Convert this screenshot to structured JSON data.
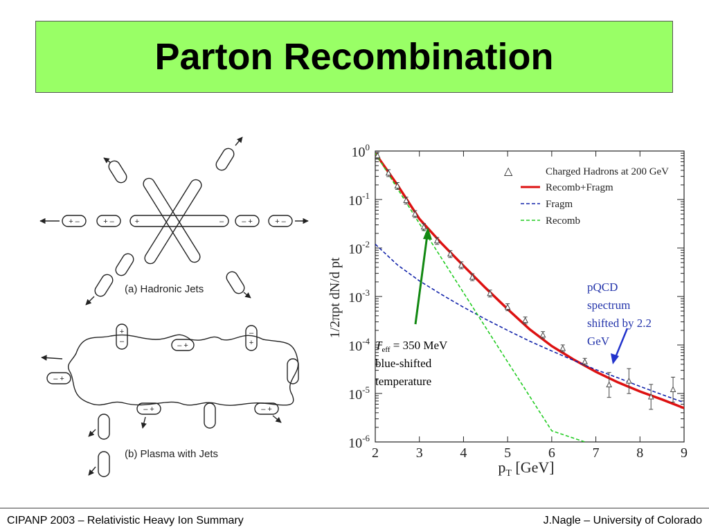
{
  "title": "Parton Recombination",
  "footer": {
    "left": "CIPANP 2003 – Relativistic Heavy Ion Summary",
    "right": "J.Nagle – University of Colorado"
  },
  "diagram": {
    "label_a": "(a)  Hadronic Jets",
    "label_b": "(b)  Plasma  with  Jets"
  },
  "chart_data": {
    "type": "line",
    "xlabel": "p_T [GeV]",
    "ylabel": "1/2πpt dN/d pt",
    "xlim": [
      2,
      9
    ],
    "ylim": [
      1e-06,
      1
    ],
    "yscale": "log",
    "xticks": [
      "2",
      "3",
      "4",
      "5",
      "6",
      "7",
      "8",
      "9"
    ],
    "yticks": [
      {
        "base": "10",
        "exp": "0"
      },
      {
        "base": "10",
        "exp": "-1"
      },
      {
        "base": "10",
        "exp": "-2"
      },
      {
        "base": "10",
        "exp": "-3"
      },
      {
        "base": "10",
        "exp": "-4"
      },
      {
        "base": "10",
        "exp": "-5"
      },
      {
        "base": "10",
        "exp": "-6"
      }
    ],
    "legend_position": "top-right",
    "series": [
      {
        "name": "Charged Hadrons at 200 GeV",
        "style": "triangle",
        "color": "#444444",
        "x": [
          2.05,
          2.3,
          2.5,
          2.7,
          2.9,
          3.1,
          3.4,
          3.7,
          3.95,
          4.2,
          4.6,
          5.0,
          5.4,
          5.8,
          6.25,
          6.75,
          7.3,
          7.75,
          8.25,
          8.75
        ],
        "y": [
          0.8,
          0.35,
          0.19,
          0.095,
          0.05,
          0.027,
          0.014,
          0.0075,
          0.0044,
          0.0025,
          0.00115,
          0.0006,
          0.00032,
          0.00016,
          8.5e-05,
          4.5e-05,
          1.5e-05,
          1.8e-05,
          8.5e-06,
          1.2e-05
        ]
      },
      {
        "name": "Recomb+Fragm",
        "style": "solid",
        "color": "#dd1111",
        "x": [
          2.0,
          2.5,
          3.0,
          3.5,
          4.0,
          4.5,
          5.0,
          5.5,
          6.0,
          6.5,
          7.0,
          7.5,
          8.0,
          8.5,
          9.0
        ],
        "y": [
          0.9,
          0.2,
          0.04,
          0.0125,
          0.0043,
          0.0015,
          0.00055,
          0.00021,
          9.5e-05,
          5e-05,
          2.8e-05,
          1.7e-05,
          1.1e-05,
          7.5e-06,
          5e-06
        ]
      },
      {
        "name": "Fragm",
        "style": "dashed",
        "color": "#1122aa",
        "x": [
          2.0,
          2.5,
          3.0,
          3.5,
          4.0,
          4.5,
          5.0,
          5.5,
          6.0,
          6.5,
          7.0,
          7.5,
          8.0,
          8.5,
          9.0
        ],
        "y": [
          0.012,
          0.0045,
          0.0021,
          0.0011,
          0.0006,
          0.00034,
          0.0002,
          0.00012,
          7.5e-05,
          4.8e-05,
          3.1e-05,
          2.1e-05,
          1.4e-05,
          9.5e-06,
          6.5e-06
        ]
      },
      {
        "name": "Recomb",
        "style": "dashed",
        "color": "#22cc22",
        "x": [
          2.0,
          3.0,
          4.0,
          5.0,
          6.0,
          6.9
        ],
        "y": [
          0.9,
          0.032,
          0.0012,
          4.5e-05,
          1.7e-06,
          9e-07
        ]
      }
    ],
    "annotations": {
      "teff_symbol": "T",
      "teff_sub": "eff",
      "teff_value": " = 350 MeV",
      "teff_line2": "blue-shifted",
      "teff_line3": "temperature",
      "pqcd_lines": [
        "pQCD",
        "spectrum",
        "shifted by 2.2",
        "GeV"
      ]
    }
  }
}
